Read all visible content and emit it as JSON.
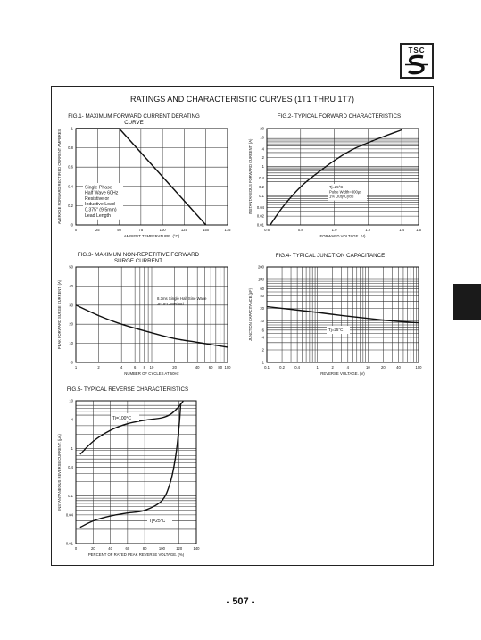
{
  "logo": {
    "text": "TSC"
  },
  "main_title": "RATINGS AND CHARACTERISTIC CURVES (1T1 THRU 1T7)",
  "page_number": "- 507 -",
  "chart_data": [
    {
      "type": "line",
      "title_line1": "FIG.1- MAXIMUM FORWARD CURRENT DERATING",
      "title_line2": "CURVE",
      "xlabel": "AMBIENT TEMPERATURE. (°C)",
      "ylabel": "AVERAGE FORWARD RECTIFIED CURRENT AMPERES",
      "xlim": [
        0,
        175
      ],
      "ylim": [
        0,
        1
      ],
      "x_ticks": [
        0,
        25,
        50,
        75,
        100,
        125,
        150,
        175
      ],
      "x_tick_labels": [
        "0",
        "25",
        "50",
        "75",
        "100",
        "125",
        "150",
        "175"
      ],
      "y_ticks": [
        0,
        0.2,
        0.4,
        0.6,
        0.8,
        1
      ],
      "y_tick_labels": [
        "0",
        "0.2",
        "0.4",
        "0.6",
        "0.8",
        "1"
      ],
      "series": [
        {
          "x": [
            0,
            50,
            150
          ],
          "y": [
            1,
            1,
            0
          ]
        }
      ],
      "annotation": [
        "Single Phase",
        "Half Wave 60Hz",
        "Resistive or",
        "Inductive Load",
        "0.375\" (9.5mm)",
        "Lead Length"
      ]
    },
    {
      "type": "line",
      "title": "FIG.2- TYPICAL FORWARD CHARACTERISTICS",
      "xlabel": "FORWARD VOLTAGE. (V)",
      "ylabel": "INSTANTANEOUS FORWARD CURRENT. (A)",
      "xlim": [
        0.6,
        1.5
      ],
      "ylim": [
        0.01,
        20
      ],
      "y_scale": "log",
      "x_ticks": [
        0.6,
        0.8,
        1.0,
        1.2,
        1.4,
        1.5
      ],
      "x_tick_labels": [
        "0.6",
        "0.8",
        "1.0",
        "1.2",
        "1.4",
        "1.5"
      ],
      "y_ticks": [
        20,
        10,
        4,
        2,
        1,
        0.4,
        0.2,
        0.1,
        0.04,
        0.02,
        0.01
      ],
      "y_tick_labels": [
        "20",
        "10",
        "4",
        "2",
        "1",
        "0.4",
        "0.2",
        "0.1",
        "0.04",
        "0.02",
        "0.01"
      ],
      "series": [
        {
          "x": [
            0.62,
            0.7,
            0.8,
            0.9,
            1.0,
            1.1,
            1.2,
            1.3,
            1.4
          ],
          "y": [
            0.01,
            0.045,
            0.2,
            0.6,
            1.6,
            3.6,
            6.5,
            11,
            18
          ]
        }
      ],
      "annotation": [
        "Tj=25°C",
        "Pulse Width=300μs",
        "1% Duty Cycle"
      ]
    },
    {
      "type": "line",
      "title_line1": "FIG.3- MAXIMUM NON-REPETITIVE FORWARD",
      "title_line2": "SURGE CURRENT",
      "xlabel": "NUMBER OF CYCLES AT 60Hz",
      "ylabel": "PEAK FORWARD SURGE CURRENT. (A)",
      "xlim": [
        1,
        100
      ],
      "x_scale": "log",
      "ylim": [
        0,
        50
      ],
      "x_ticks": [
        1,
        2,
        4,
        6,
        8,
        10,
        20,
        40,
        60,
        80,
        100
      ],
      "x_tick_labels": [
        "1",
        "2",
        "4",
        "6",
        "8",
        "10",
        "20",
        "40",
        "60",
        "80",
        "100"
      ],
      "y_ticks": [
        0,
        10,
        20,
        30,
        40,
        50
      ],
      "y_tick_labels": [
        "0",
        "10",
        "20",
        "30",
        "40",
        "50"
      ],
      "series": [
        {
          "x": [
            1,
            2,
            4,
            10,
            20,
            40,
            100
          ],
          "y": [
            30,
            24.5,
            20,
            15.5,
            12.5,
            10.5,
            8
          ]
        }
      ],
      "annotation": [
        "8.3ms Single Half Sine Wave",
        "JEDEC Method"
      ]
    },
    {
      "type": "line",
      "title": "FIG.4- TYPICAL JUNCTION CAPACITANCE",
      "xlabel": "REVERSE VOLTAGE. (V)",
      "ylabel": "JUNCTION CAPACITANCE.(pF)",
      "xlim": [
        0.1,
        100
      ],
      "ylim": [
        1,
        200
      ],
      "x_scale": "log",
      "y_scale": "log",
      "x_ticks": [
        0.1,
        0.2,
        0.4,
        1,
        2,
        4,
        10,
        20,
        40,
        100
      ],
      "x_tick_labels": [
        "0.1",
        "0.2",
        "0.4",
        "1",
        "2",
        "4",
        "10",
        "20",
        "40",
        "100"
      ],
      "y_ticks": [
        200,
        100,
        60,
        40,
        20,
        10,
        6,
        4,
        2,
        1
      ],
      "y_tick_labels": [
        "200",
        "100",
        "60",
        "40",
        "20",
        "10",
        "6",
        "4",
        "2",
        "1"
      ],
      "series": [
        {
          "x": [
            0.1,
            0.3,
            1,
            3,
            10,
            30,
            100
          ],
          "y": [
            22,
            19,
            16,
            13.5,
            11.5,
            10,
            9
          ]
        }
      ],
      "annotation": [
        "Tj=25°C"
      ]
    },
    {
      "type": "line",
      "title": "FIG.5- TYPICAL REVERSE CHARACTERISTICS",
      "xlabel": "PERCENT OF RATED PEAK REVERSE VOLTAGE. (%)",
      "ylabel": "INSTANTANEOUS REVERSE CURRENT. (μA)",
      "xlim": [
        0,
        140
      ],
      "ylim": [
        0.01,
        10
      ],
      "y_scale": "log",
      "x_ticks": [
        0,
        20,
        40,
        60,
        80,
        100,
        120,
        140
      ],
      "x_tick_labels": [
        "0",
        "20",
        "40",
        "60",
        "80",
        "100",
        "120",
        "140"
      ],
      "y_ticks": [
        10,
        4,
        1,
        0.4,
        0.1,
        0.04,
        0.01
      ],
      "y_tick_labels": [
        "10",
        "4",
        "1",
        "0.4",
        "0.1",
        "0.04",
        "0.01"
      ],
      "series": [
        {
          "name": "Tj=100°C",
          "x": [
            5,
            20,
            40,
            60,
            80,
            100,
            110,
            118,
            125
          ],
          "y": [
            0.75,
            1.4,
            2.4,
            3.3,
            3.9,
            4.4,
            5.2,
            7.0,
            10
          ]
        },
        {
          "name": "Tj=25°C",
          "x": [
            5,
            20,
            40,
            60,
            80,
            100,
            110,
            116,
            120,
            122
          ],
          "y": [
            0.022,
            0.03,
            0.038,
            0.044,
            0.05,
            0.08,
            0.2,
            0.7,
            3,
            9
          ]
        }
      ]
    }
  ]
}
